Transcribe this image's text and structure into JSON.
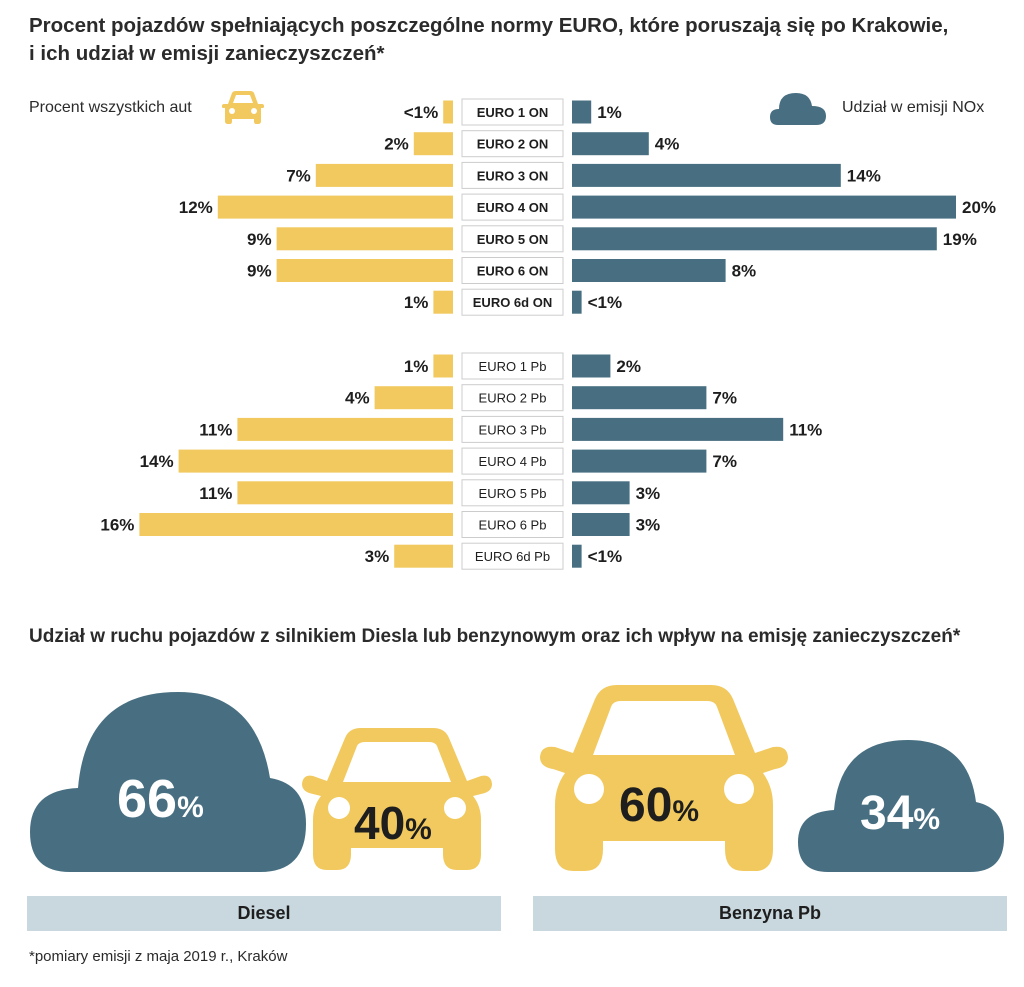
{
  "title_line1": "Procent pojazdów spełniających poszczególne normy EURO, które poruszają się po Krakowie,",
  "title_line2": "i ich udział w emisji zanieczyszczeń*",
  "legend": {
    "left_label": "Procent wszystkich aut",
    "right_label": "Udział w emisji NOx",
    "left_icon": "car-icon",
    "right_icon": "cloud-icon"
  },
  "colors": {
    "cars": "#f1c95e",
    "emission": "#476f81",
    "band": "#c9d8de",
    "label_border": "#cccccc"
  },
  "chart_data": {
    "type": "bar",
    "orientation": "horizontal-butterfly",
    "title": "Procent pojazdów spełniających poszczególne normy EURO, które poruszają się po Krakowie, i ich udział w emisji zanieczyszczeń*",
    "series_names": [
      "Procent wszystkich aut",
      "Udział w emisji NOx"
    ],
    "groups": [
      {
        "name": "ON",
        "categories": [
          "EURO 1 ON",
          "EURO 2 ON",
          "EURO 3 ON",
          "EURO 4 ON",
          "EURO 5 ON",
          "EURO 6 ON",
          "EURO 6d ON"
        ],
        "cars_values": [
          0.5,
          2,
          7,
          12,
          9,
          9,
          1
        ],
        "cars_labels": [
          "<1%",
          "2%",
          "7%",
          "12%",
          "9%",
          "9%",
          "1%"
        ],
        "emission_values": [
          1,
          4,
          14,
          20,
          19,
          8,
          0.5
        ],
        "emission_labels": [
          "1%",
          "4%",
          "14%",
          "20%",
          "19%",
          "8%",
          "<1%"
        ]
      },
      {
        "name": "Pb",
        "categories": [
          "EURO 1 Pb",
          "EURO 2 Pb",
          "EURO 3 Pb",
          "EURO 4 Pb",
          "EURO 5 Pb",
          "EURO 6 Pb",
          "EURO 6d Pb"
        ],
        "cars_values": [
          1,
          4,
          11,
          14,
          11,
          16,
          3
        ],
        "cars_labels": [
          "1%",
          "4%",
          "11%",
          "14%",
          "11%",
          "16%",
          "3%"
        ],
        "emission_values": [
          2,
          7,
          11,
          7,
          3,
          3,
          0.5
        ],
        "emission_labels": [
          "2%",
          "7%",
          "11%",
          "7%",
          "3%",
          "3%",
          "<1%"
        ]
      }
    ]
  },
  "section2": {
    "title": "Udział w ruchu pojazdów z silnikiem Diesla lub benzynowym oraz ich wpływ na emisję zanieczyszczeń*",
    "diesel": {
      "label": "Diesel",
      "emission_pct": "66",
      "traffic_pct": "40",
      "pct_suffix": "%"
    },
    "petrol": {
      "label": "Benzyna Pb",
      "traffic_pct": "60",
      "emission_pct": "34",
      "pct_suffix": "%"
    }
  },
  "footnote": "*pomiary emisji z maja 2019 r., Kraków"
}
